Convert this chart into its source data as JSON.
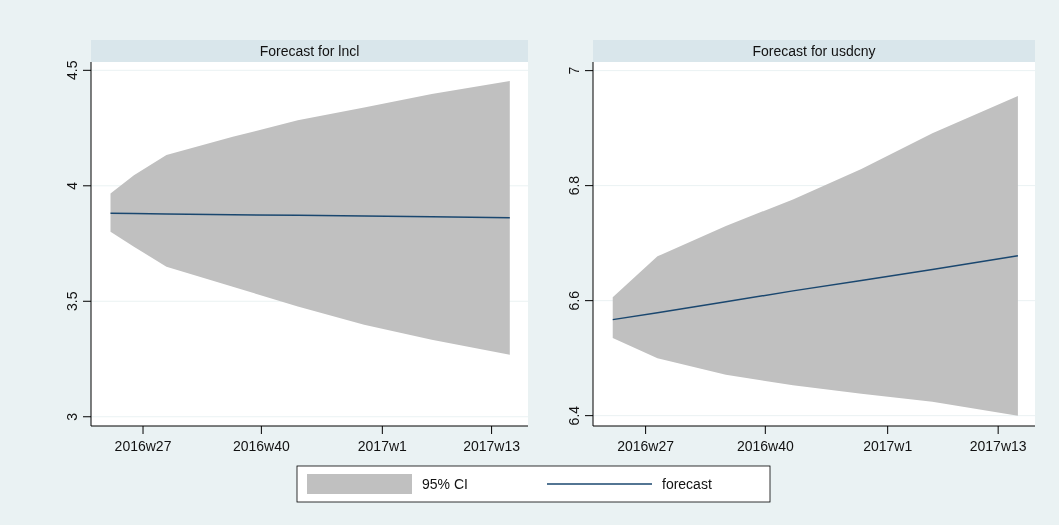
{
  "chart_data": [
    {
      "type": "line",
      "title": "Forecast for lncl",
      "xlim": [
        "2016-05-22",
        "2017-04-23"
      ],
      "xticks": [
        {
          "value": "2016-07-01",
          "label": "2016w27"
        },
        {
          "value": "2016-09-30",
          "label": "2016w40"
        },
        {
          "value": "2017-01-01",
          "label": "2017w1"
        },
        {
          "value": "2017-03-26",
          "label": "2017w13"
        }
      ],
      "ylim": [
        2.96,
        4.536
      ],
      "yticks": [
        3,
        3.5,
        4,
        4.5
      ],
      "grid": "y",
      "legend": "bottom",
      "annotations": [
        "95% CI"
      ],
      "series": [
        {
          "name": "forecast",
          "color": "#1a476f",
          "x": [
            "2016-06-06",
            "2016-06-24",
            "2016-07-19",
            "2016-09-08",
            "2016-10-28",
            "2016-12-18",
            "2017-02-08",
            "2017-04-09"
          ],
          "values": [
            3.881,
            3.88,
            3.878,
            3.875,
            3.872,
            3.869,
            3.866,
            3.862
          ],
          "upper": [
            3.967,
            4.046,
            4.133,
            4.212,
            4.284,
            4.339,
            4.397,
            4.454
          ],
          "lower": [
            3.801,
            3.736,
            3.65,
            3.563,
            3.477,
            3.398,
            3.333,
            3.268
          ]
        }
      ]
    },
    {
      "type": "line",
      "title": "Forecast for usdcny",
      "xlim": [
        "2016-05-22",
        "2017-04-23"
      ],
      "xticks": [
        {
          "value": "2016-07-01",
          "label": "2016w27"
        },
        {
          "value": "2016-09-30",
          "label": "2016w40"
        },
        {
          "value": "2017-01-01",
          "label": "2017w1"
        },
        {
          "value": "2017-03-26",
          "label": "2017w13"
        }
      ],
      "ylim": [
        6.382,
        7.015
      ],
      "yticks": [
        6.4,
        6.6,
        6.8,
        7
      ],
      "grid": "y",
      "series": [
        {
          "color": "#1a476f",
          "x": [
            "2016-06-06",
            "2016-07-10",
            "2016-08-31",
            "2016-10-21",
            "2016-12-12",
            "2017-02-04",
            "2017-04-10"
          ],
          "values": [
            6.567,
            6.579,
            6.598,
            6.617,
            6.635,
            6.654,
            6.678
          ],
          "upper": [
            6.606,
            6.677,
            6.73,
            6.776,
            6.829,
            6.891,
            6.956
          ],
          "lower": [
            6.535,
            6.5,
            6.471,
            6.453,
            6.438,
            6.424,
            6.4
          ]
        }
      ]
    }
  ]
}
